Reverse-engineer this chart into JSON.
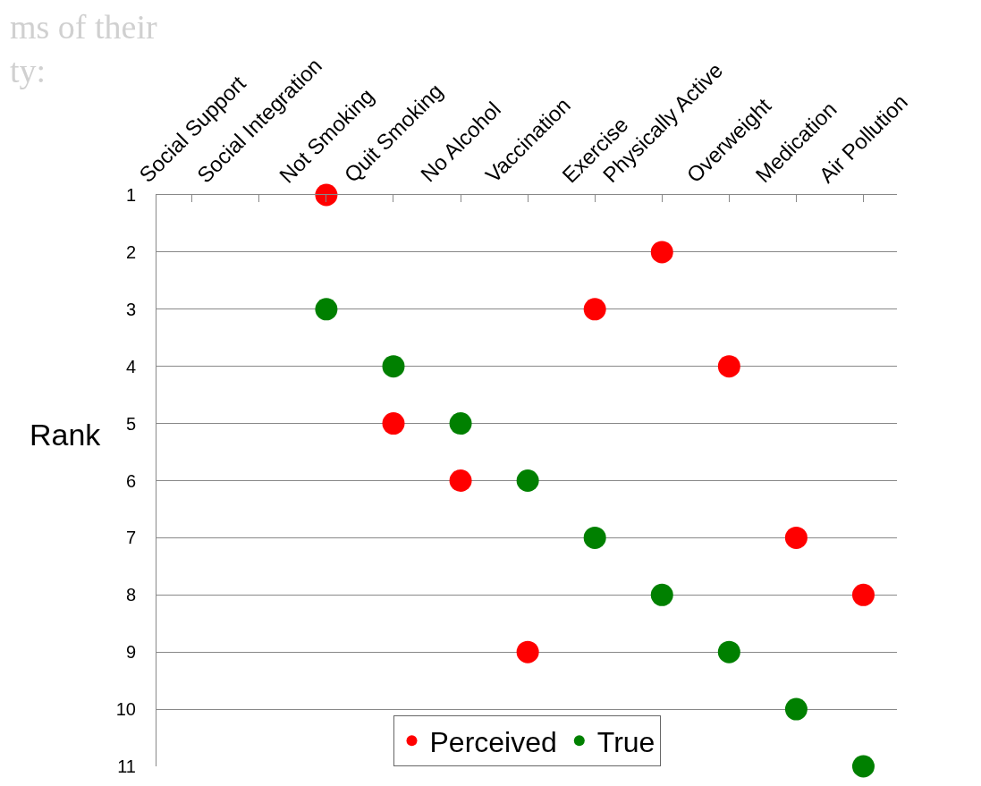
{
  "chart_data": {
    "type": "scatter",
    "ylabel": "Rank",
    "categories": [
      "Social Support",
      "Social Integration",
      "Not Smoking",
      "Quit Smoking",
      "No Alcohol",
      "Vaccination",
      "Exercise",
      "Physically Active",
      "Overweight",
      "Medication",
      "Air Pollution"
    ],
    "series": [
      {
        "name": "Perceived",
        "color": "#ff0000",
        "values": [
          null,
          null,
          1,
          5,
          6,
          9,
          3,
          2,
          4,
          7,
          8
        ]
      },
      {
        "name": "True",
        "color": "#008000",
        "values": [
          null,
          null,
          3,
          4,
          5,
          6,
          7,
          8,
          9,
          10,
          11
        ]
      }
    ],
    "ylim": [
      11,
      1
    ],
    "yticks": [
      1,
      2,
      3,
      4,
      5,
      6,
      7,
      8,
      9,
      10,
      11
    ],
    "grid": "y",
    "legend": "bottom",
    "marker": "circle",
    "annotations": [
      "ms of their\nty:"
    ]
  }
}
